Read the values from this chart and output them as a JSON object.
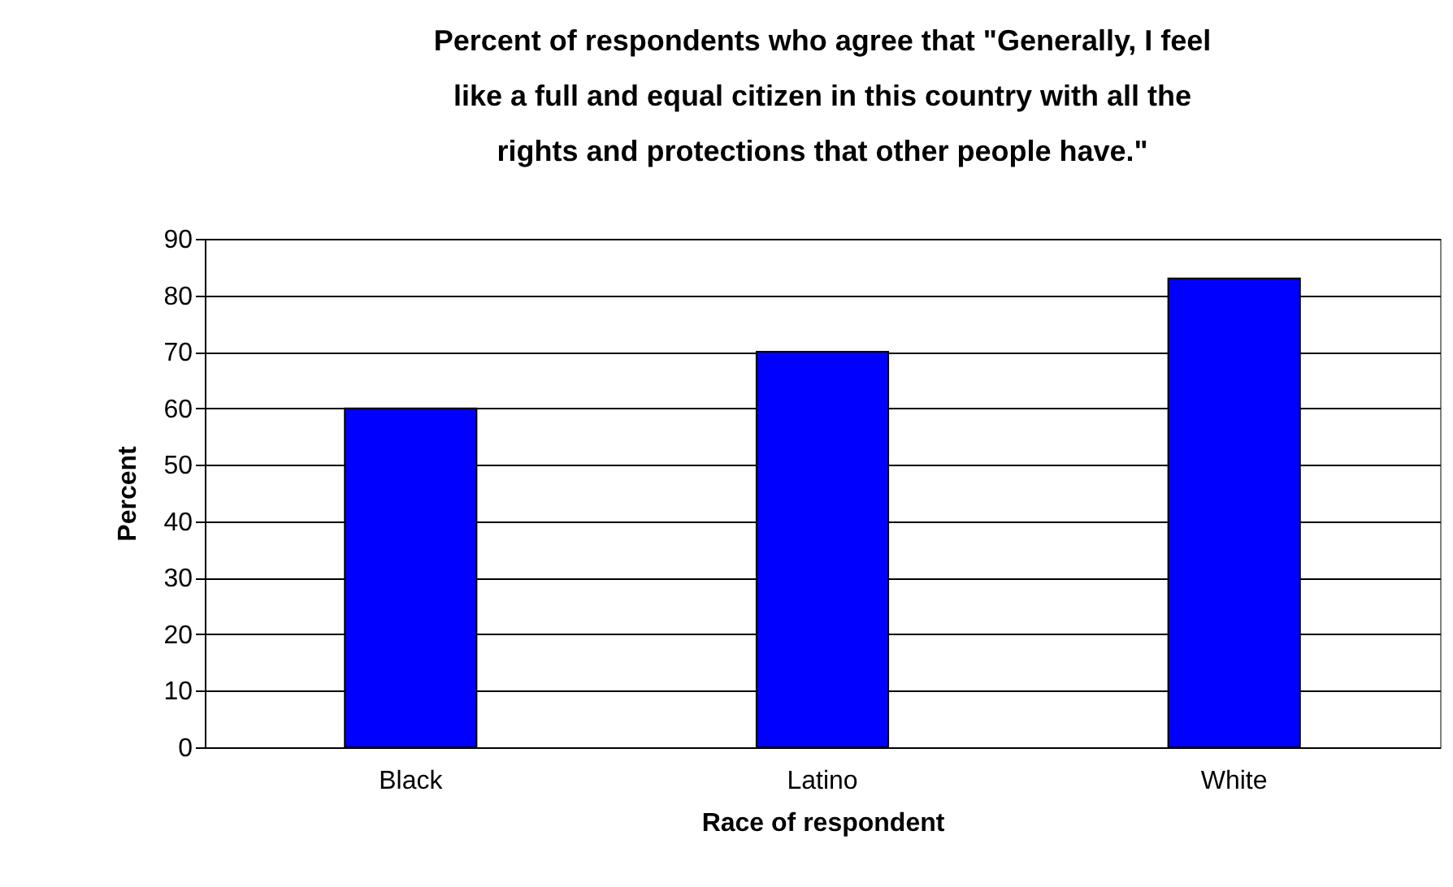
{
  "chart_data": {
    "type": "bar",
    "title": "Percent of respondents who agree that \"Generally, I feel like a full and equal citizen in this country with all the rights and protections that other people have.\"",
    "categories": [
      "Black",
      "Latino",
      "White"
    ],
    "values": [
      60,
      70,
      83
    ],
    "color": "#0000ff",
    "xlabel": "Race of respondent",
    "ylabel": "Percent",
    "ylim": [
      0,
      90
    ],
    "yticks": [
      0,
      10,
      20,
      30,
      40,
      50,
      60,
      70,
      80,
      90
    ],
    "grid": "y"
  }
}
